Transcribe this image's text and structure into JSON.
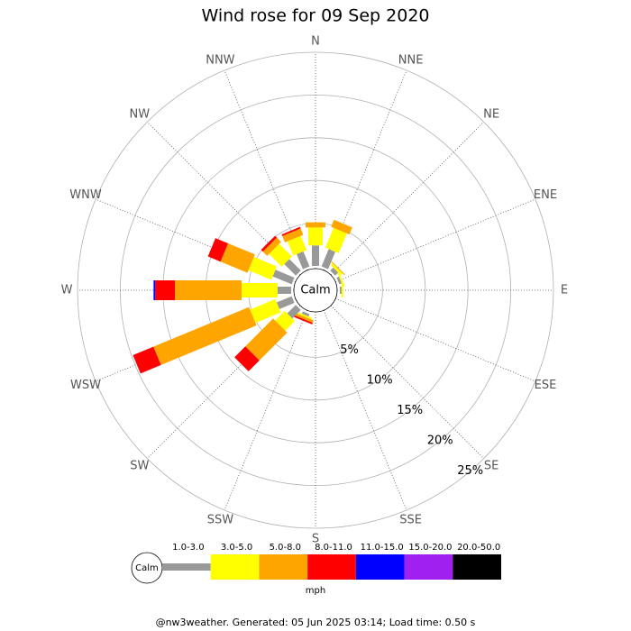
{
  "chart_data": {
    "type": "windrose",
    "title": "Wind rose for 09 Sep 2020",
    "directions": [
      "N",
      "NNE",
      "NE",
      "ENE",
      "E",
      "ESE",
      "SE",
      "SSE",
      "S",
      "SSW",
      "SW",
      "WSW",
      "W",
      "WNW",
      "NW",
      "NNW"
    ],
    "calm_label": "Calm",
    "rlim": [
      0,
      25
    ],
    "rticks": [
      {
        "value": 5,
        "label": "5%"
      },
      {
        "value": 10,
        "label": "10%"
      },
      {
        "value": 15,
        "label": "15%"
      },
      {
        "value": 20,
        "label": "20%"
      },
      {
        "value": 25,
        "label": "25%"
      }
    ],
    "series": [
      {
        "name": "1.0-3.0",
        "color": "#999999",
        "values": [
          2.4,
          2.2,
          0.5,
          0.3,
          0.2,
          0,
          0,
          0,
          0,
          0.3,
          1.4,
          1.9,
          1.6,
          2.4,
          1.9,
          1.9
        ]
      },
      {
        "name": "3.0-5.0",
        "color": "#ffff00",
        "values": [
          2.1,
          2.5,
          0.3,
          0.2,
          0.2,
          0,
          0,
          0,
          0,
          0.2,
          1.6,
          3.2,
          4.2,
          2.9,
          2.1,
          1.8
        ]
      },
      {
        "name": "5.0-8.0",
        "color": "#ffa500",
        "values": [
          0.6,
          0.9,
          0.1,
          0,
          0,
          0,
          0,
          0,
          0,
          0.3,
          4.6,
          12.1,
          7.8,
          3.4,
          0.7,
          0.8
        ]
      },
      {
        "name": "8.0-11.0",
        "color": "#ff0000",
        "values": [
          0,
          0,
          0,
          0,
          0,
          0,
          0,
          0,
          0,
          0.2,
          1.8,
          2.6,
          2.3,
          1.6,
          0.3,
          0.2
        ]
      },
      {
        "name": "11.0-15.0",
        "color": "#0000ff",
        "values": [
          0,
          0,
          0,
          0,
          0,
          0,
          0,
          0,
          0,
          0,
          0,
          0,
          0.2,
          0,
          0,
          0
        ]
      },
      {
        "name": "15.0-20.0",
        "color": "#a020f0",
        "values": [
          0,
          0,
          0,
          0,
          0,
          0,
          0,
          0,
          0,
          0,
          0,
          0,
          0,
          0,
          0,
          0
        ]
      },
      {
        "name": "20.0-50.0",
        "color": "#000000",
        "values": [
          0,
          0,
          0,
          0,
          0,
          0,
          0,
          0,
          0,
          0,
          0,
          0,
          0,
          0,
          0,
          0
        ]
      }
    ],
    "unit_label": "mph",
    "footer": "@nw3weather. Generated: 05 Jun 2025 03:14; Load time: 0.50 s"
  }
}
